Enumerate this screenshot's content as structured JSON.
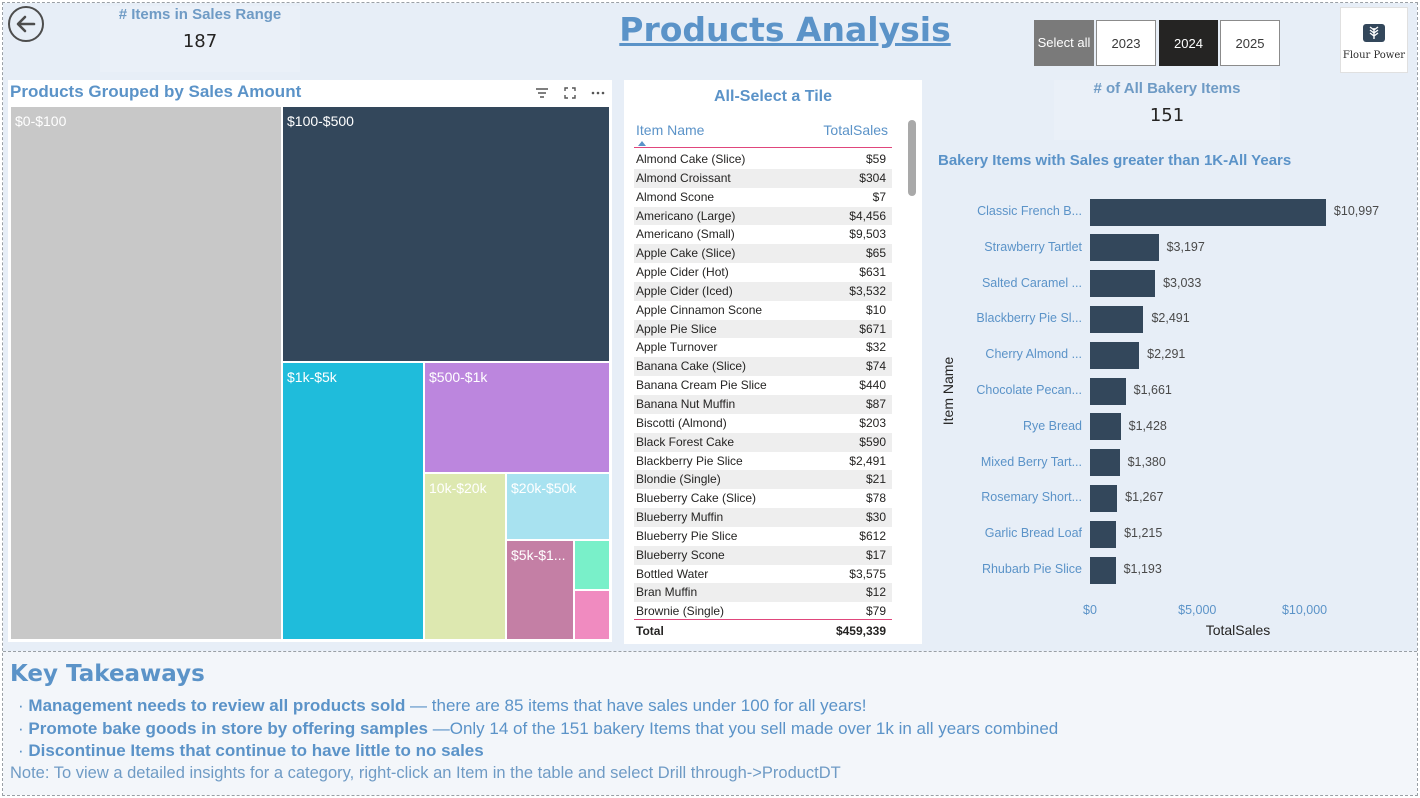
{
  "header": {
    "kpi_sales_range": {
      "label": "# Items in Sales Range",
      "value": "187"
    },
    "title": "Products Analysis",
    "year_slicer": [
      {
        "label": "Select all",
        "style": "grey"
      },
      {
        "label": "2023",
        "style": "normal"
      },
      {
        "label": "2024",
        "style": "selected"
      },
      {
        "label": "2025",
        "style": "normal"
      }
    ],
    "logo_text": "Flour Power"
  },
  "treemap": {
    "title": "Products Grouped by Sales Amount",
    "tiles": [
      {
        "label": "$0-$100",
        "color": "#c8c8c8"
      },
      {
        "label": "$100-$500",
        "color": "#33475b"
      },
      {
        "label": "$1k-$5k",
        "color": "#1fbcdb"
      },
      {
        "label": "$500-$1k",
        "color": "#bc86de"
      },
      {
        "label": "10k-$20k",
        "color": "#dde8b0"
      },
      {
        "label": "$20k-$50k",
        "color": "#a8e2f0"
      },
      {
        "label": "$5k-$1...",
        "color": "#c47fa5"
      },
      {
        "label": "",
        "color": "#79f0c9"
      },
      {
        "label": "",
        "color": "#f08bc0"
      }
    ]
  },
  "table": {
    "title": "All-Select a Tile",
    "columns": [
      "Item Name",
      "TotalSales"
    ],
    "rows": [
      [
        "Almond Cake (Slice)",
        "$59"
      ],
      [
        "Almond Croissant",
        "$304"
      ],
      [
        "Almond Scone",
        "$7"
      ],
      [
        "Americano (Large)",
        "$4,456"
      ],
      [
        "Americano (Small)",
        "$9,503"
      ],
      [
        "Apple Cake (Slice)",
        "$65"
      ],
      [
        "Apple Cider (Hot)",
        "$631"
      ],
      [
        "Apple Cider (Iced)",
        "$3,532"
      ],
      [
        "Apple Cinnamon Scone",
        "$10"
      ],
      [
        "Apple Pie Slice",
        "$671"
      ],
      [
        "Apple Turnover",
        "$32"
      ],
      [
        "Banana Cake (Slice)",
        "$74"
      ],
      [
        "Banana Cream Pie Slice",
        "$440"
      ],
      [
        "Banana Nut Muffin",
        "$87"
      ],
      [
        "Biscotti (Almond)",
        "$203"
      ],
      [
        "Black Forest Cake",
        "$590"
      ],
      [
        "Blackberry Pie Slice",
        "$2,491"
      ],
      [
        "Blondie (Single)",
        "$21"
      ],
      [
        "Blueberry Cake (Slice)",
        "$78"
      ],
      [
        "Blueberry Muffin",
        "$30"
      ],
      [
        "Blueberry Pie Slice",
        "$612"
      ],
      [
        "Blueberry Scone",
        "$17"
      ],
      [
        "Bottled Water",
        "$3,575"
      ],
      [
        "Bran Muffin",
        "$12"
      ],
      [
        "Brownie (Single)",
        "$79"
      ]
    ],
    "total": {
      "label": "Total",
      "value": "$459,339"
    }
  },
  "kpi_bakery": {
    "label": "# of All Bakery Items",
    "value": "151"
  },
  "chart_data": {
    "type": "bar",
    "orientation": "horizontal",
    "title": "Bakery Items with Sales greater than 1K-All Years",
    "xlabel": "TotalSales",
    "ylabel": "Item Name",
    "categories": [
      "Classic French B...",
      "Strawberry Tartlet",
      "Salted Caramel ...",
      "Blackberry Pie Sl...",
      "Cherry Almond ...",
      "Chocolate Pecan...",
      "Rye Bread",
      "Mixed Berry Tart...",
      "Rosemary Short...",
      "Garlic Bread Loaf",
      "Rhubarb Pie Slice"
    ],
    "values": [
      10997,
      3197,
      3033,
      2491,
      2291,
      1661,
      1428,
      1380,
      1267,
      1215,
      1193
    ],
    "value_labels": [
      "$10,997",
      "$3,197",
      "$3,033",
      "$2,491",
      "$2,291",
      "$1,661",
      "$1,428",
      "$1,380",
      "$1,267",
      "$1,215",
      "$1,193"
    ],
    "x_ticks": [
      0,
      5000,
      10000
    ],
    "x_tick_labels": [
      "$0",
      "$5,000",
      "$10,000"
    ],
    "bar_color": "#33475b",
    "grid": false
  },
  "takeaways": {
    "title": "Key Takeaways",
    "items": [
      {
        "bold": "Management needs to review all products sold",
        "rest": " — there are 85 items that have sales under 100 for all years!"
      },
      {
        "bold": "Promote bake goods in store by offering samples",
        "rest": " —Only 14 of the 151 bakery Items that you sell made over 1k in all years combined"
      },
      {
        "bold": "Discontinue Items that continue to have little to no sales",
        "rest": ""
      }
    ],
    "bullet": "·",
    "note": "Note: To view a detailed insights for a category, right-click an Item in the table and select Drill through->ProductDT"
  },
  "colors": {
    "accent": "#5b93c8",
    "bar": "#33475b",
    "header_line": "#e0467c"
  }
}
